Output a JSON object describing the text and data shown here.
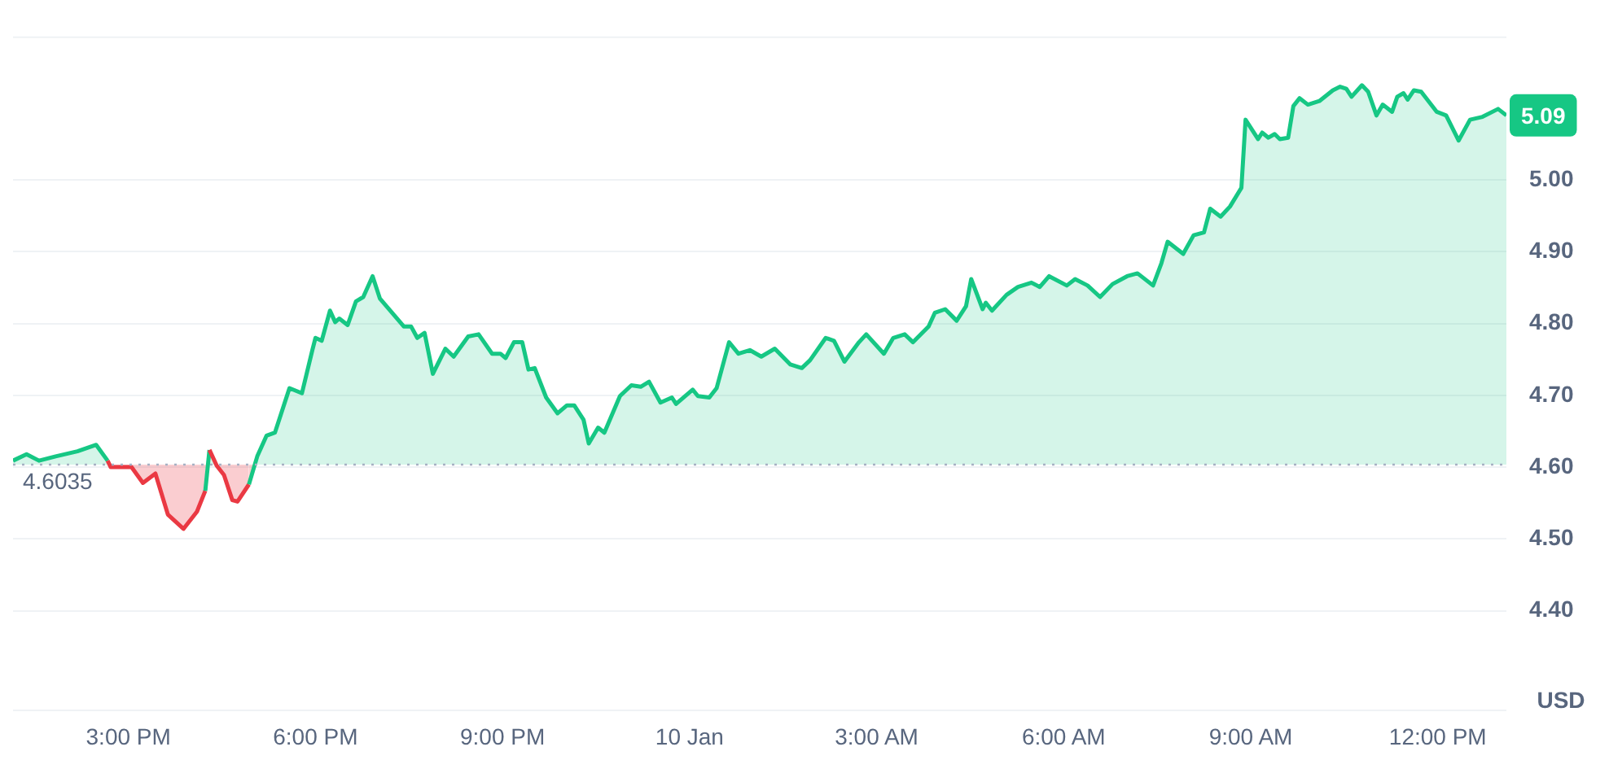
{
  "chart_data": {
    "type": "area",
    "ylabel": "USD",
    "xlim": [
      "--01-09T13:09",
      "--01-10T13:06"
    ],
    "xticks": [
      {
        "value": "--01-09T15:00",
        "label": "3:00 PM"
      },
      {
        "value": "--01-09T18:00",
        "label": "6:00 PM"
      },
      {
        "value": "--01-09T21:00",
        "label": "9:00 PM"
      },
      {
        "value": "--01-10",
        "label": "10 Jan"
      },
      {
        "value": "--01-10T03:00",
        "label": "3:00 AM"
      },
      {
        "value": "--01-10T06:00",
        "label": "6:00 AM"
      },
      {
        "value": "--01-10T09:00",
        "label": "9:00 AM"
      },
      {
        "value": "--01-10T12:00",
        "label": "12:00 PM"
      }
    ],
    "ylim": [
      4.26,
      5.2
    ],
    "yticks": [
      {
        "value": 4.4,
        "label": "4.40"
      },
      {
        "value": 4.5,
        "label": "4.50"
      },
      {
        "value": 4.6,
        "label": "4.60"
      },
      {
        "value": 4.7,
        "label": "4.70"
      },
      {
        "value": 4.8,
        "label": "4.80"
      },
      {
        "value": 4.9,
        "label": "4.90"
      },
      {
        "value": 5.0,
        "label": "5.00"
      }
    ],
    "grid": "y",
    "ref_lines": [
      {
        "axis": "y",
        "value": 4.6035,
        "label": "4.6035",
        "color": "#a6b0c3",
        "line_style": "dotted"
      }
    ],
    "annotations": [
      {
        "text": "5.09",
        "y": 5.09
      }
    ],
    "x": [
      "--01-09T13:09",
      "--01-09T13:22",
      "--01-09T13:34",
      "--01-09T13:50",
      "--01-09T14:11",
      "--01-09T14:29",
      "--01-09T14:40",
      "--01-09T14:43",
      "--01-09T15:03",
      "--01-09T15:14",
      "--01-09T15:26",
      "--01-09T15:38",
      "--01-09T15:53",
      "--01-09T16:06",
      "--01-09T16:14",
      "--01-09T16:18",
      "--01-09T16:25",
      "--01-09T16:32",
      "--01-09T16:40",
      "--01-09T16:45",
      "--01-09T16:56",
      "--01-09T17:04",
      "--01-09T17:13",
      "--01-09T17:21",
      "--01-09T17:35",
      "--01-09T17:47",
      "--01-09T17:57",
      "--01-09T18:00",
      "--01-09T18:06",
      "--01-09T18:14",
      "--01-09T18:19",
      "--01-09T18:23",
      "--01-09T18:31",
      "--01-09T18:39",
      "--01-09T18:46",
      "--01-09T18:55",
      "--01-09T19:02",
      "--01-09T19:25",
      "--01-09T19:32",
      "--01-09T19:38",
      "--01-09T19:45",
      "--01-09T19:53",
      "--01-09T20:05",
      "--01-09T20:13",
      "--01-09T20:27",
      "--01-09T20:37",
      "--01-09T20:50",
      "--01-09T20:58",
      "--01-09T21:03",
      "--01-09T21:11",
      "--01-09T21:19",
      "--01-09T21:25",
      "--01-09T21:31",
      "--01-09T21:42",
      "--01-09T21:53",
      "--01-09T22:02",
      "--01-09T22:09",
      "--01-09T22:18",
      "--01-09T22:23",
      "--01-09T22:32",
      "--01-09T22:38",
      "--01-09T22:53",
      "--01-09T23:04",
      "--01-09T23:13",
      "--01-09T23:21",
      "--01-09T23:32",
      "--01-09T23:43",
      "--01-09T23:47",
      "--01-10T00:03",
      "--01-10T00:08",
      "--01-10T00:19",
      "--01-10T00:26",
      "--01-10T00:38",
      "--01-10T00:47",
      "--01-10T00:58",
      "--01-10T01:09",
      "--01-10T01:22",
      "--01-10T01:37",
      "--01-10T01:48",
      "--01-10T01:56",
      "--01-10T02:11",
      "--01-10T02:19",
      "--01-10T02:29",
      "--01-10T02:43",
      "--01-10T02:50",
      "--01-10T03:07",
      "--01-10T03:16",
      "--01-10T03:27",
      "--01-10T03:35",
      "--01-10T03:50",
      "--01-10T03:56",
      "--01-10T04:06",
      "--01-10T04:17",
      "--01-10T04:26",
      "--01-10T04:31",
      "--01-10T04:42",
      "--01-10T04:45",
      "--01-10T04:51",
      "--01-10T05:05",
      "--01-10T05:16",
      "--01-10T05:29",
      "--01-10T05:37",
      "--01-10T05:46",
      "--01-10T06:03",
      "--01-10T06:11",
      "--01-10T06:23",
      "--01-10T06:35",
      "--01-10T06:47",
      "--01-10T07:01",
      "--01-10T07:11",
      "--01-10T07:26",
      "--01-10T07:34",
      "--01-10T07:40",
      "--01-10T07:55",
      "--01-10T08:05",
      "--01-10T08:15",
      "--01-10T08:21",
      "--01-10T08:31",
      "--01-10T08:40",
      "--01-10T08:51",
      "--01-10T08:55",
      "--01-10T09:07",
      "--01-10T09:11",
      "--01-10T09:17",
      "--01-10T09:23",
      "--01-10T09:28",
      "--01-10T09:36",
      "--01-10T09:41",
      "--01-10T09:47",
      "--01-10T09:55",
      "--01-10T10:06",
      "--01-10T10:19",
      "--01-10T10:26",
      "--01-10T10:32",
      "--01-10T10:37",
      "--01-10T10:47",
      "--01-10T10:53",
      "--01-10T11:01",
      "--01-10T11:07",
      "--01-10T11:16",
      "--01-10T11:21",
      "--01-10T11:27",
      "--01-10T11:31",
      "--01-10T11:37",
      "--01-10T11:44",
      "--01-10T11:59",
      "--01-10T12:08",
      "--01-10T12:20",
      "--01-10T12:31",
      "--01-10T12:43",
      "--01-10T12:58",
      "--01-10T13:06"
    ],
    "series": [
      {
        "color": "#16c784",
        "values": [
          4.609,
          4.618,
          4.609,
          4.615,
          4.622,
          4.631,
          4.609,
          4.6,
          4.6,
          4.578,
          4.591,
          4.534,
          4.514,
          4.538,
          4.567,
          4.624,
          4.602,
          4.589,
          4.554,
          4.552,
          4.576,
          4.615,
          4.644,
          4.648,
          4.71,
          4.703,
          4.763,
          4.78,
          4.776,
          4.818,
          4.802,
          4.807,
          4.798,
          4.831,
          4.837,
          4.866,
          4.835,
          4.796,
          4.796,
          4.78,
          4.787,
          4.73,
          4.765,
          4.754,
          4.782,
          4.785,
          4.758,
          4.758,
          4.752,
          4.774,
          4.774,
          4.736,
          4.738,
          4.697,
          4.675,
          4.686,
          4.686,
          4.666,
          4.633,
          4.655,
          4.648,
          4.699,
          4.714,
          4.712,
          4.719,
          4.69,
          4.697,
          4.688,
          4.708,
          4.699,
          4.697,
          4.71,
          4.774,
          4.758,
          4.763,
          4.754,
          4.765,
          4.743,
          4.738,
          4.749,
          4.78,
          4.776,
          4.747,
          4.774,
          4.785,
          4.758,
          4.78,
          4.785,
          4.774,
          4.796,
          4.815,
          4.82,
          4.804,
          4.824,
          4.862,
          4.82,
          4.829,
          4.818,
          4.84,
          4.851,
          4.857,
          4.851,
          4.866,
          4.853,
          4.862,
          4.853,
          4.837,
          4.855,
          4.866,
          4.87,
          4.853,
          4.884,
          4.914,
          4.897,
          4.923,
          4.927,
          4.96,
          4.949,
          4.963,
          4.989,
          5.084,
          5.057,
          5.066,
          5.059,
          5.064,
          5.057,
          5.059,
          5.103,
          5.114,
          5.105,
          5.11,
          5.125,
          5.13,
          5.127,
          5.116,
          5.132,
          5.123,
          5.09,
          5.105,
          5.095,
          5.116,
          5.121,
          5.112,
          5.125,
          5.123,
          5.095,
          5.09,
          5.055,
          5.084,
          5.088,
          5.099,
          5.09
        ],
        "colors": [
          "#16c784",
          "#16c784",
          "#16c784",
          "#16c784",
          "#16c784",
          "#16c784",
          "#16c784",
          "#ea3943",
          "#ea3943",
          "#ea3943",
          "#ea3943",
          "#ea3943",
          "#ea3943",
          "#ea3943",
          "#ea3943",
          "#16c784",
          "#ea3943",
          "#ea3943",
          "#ea3943",
          "#ea3943",
          "#ea3943",
          "#16c784",
          "#16c784",
          "#16c784",
          "#16c784",
          "#16c784",
          "#16c784",
          "#16c784",
          "#16c784",
          "#16c784",
          "#16c784",
          "#16c784",
          "#16c784",
          "#16c784",
          "#16c784",
          "#16c784",
          "#16c784",
          "#16c784",
          "#16c784",
          "#16c784",
          "#16c784",
          "#16c784",
          "#16c784",
          "#16c784",
          "#16c784",
          "#16c784",
          "#16c784",
          "#16c784",
          "#16c784",
          "#16c784",
          "#16c784",
          "#16c784",
          "#16c784",
          "#16c784",
          "#16c784",
          "#16c784",
          "#16c784",
          "#16c784",
          "#16c784",
          "#16c784",
          "#16c784",
          "#16c784",
          "#16c784",
          "#16c784",
          "#16c784",
          "#16c784",
          "#16c784",
          "#16c784",
          "#16c784",
          "#16c784",
          "#16c784",
          "#16c784",
          "#16c784",
          "#16c784",
          "#16c784",
          "#16c784",
          "#16c784",
          "#16c784",
          "#16c784",
          "#16c784",
          "#16c784",
          "#16c784",
          "#16c784",
          "#16c784",
          "#16c784",
          "#16c784",
          "#16c784",
          "#16c784",
          "#16c784",
          "#16c784",
          "#16c784",
          "#16c784",
          "#16c784",
          "#16c784",
          "#16c784",
          "#16c784",
          "#16c784",
          "#16c784",
          "#16c784",
          "#16c784",
          "#16c784",
          "#16c784",
          "#16c784",
          "#16c784",
          "#16c784",
          "#16c784",
          "#16c784",
          "#16c784",
          "#16c784",
          "#16c784",
          "#16c784",
          "#16c784",
          "#16c784",
          "#16c784",
          "#16c784",
          "#16c784",
          "#16c784",
          "#16c784",
          "#16c784",
          "#16c784",
          "#16c784",
          "#16c784",
          "#16c784",
          "#16c784",
          "#16c784",
          "#16c784",
          "#16c784",
          "#16c784",
          "#16c784",
          "#16c784",
          "#16c784",
          "#16c784",
          "#16c784",
          "#16c784",
          "#16c784",
          "#16c784",
          "#16c784",
          "#16c784",
          "#16c784",
          "#16c784",
          "#16c784",
          "#16c784",
          "#16c784",
          "#16c784",
          "#16c784",
          "#16c784",
          "#16c784",
          "#16c784",
          "#16c784",
          "#16c784",
          "#16c784",
          "#16c784"
        ]
      }
    ]
  }
}
